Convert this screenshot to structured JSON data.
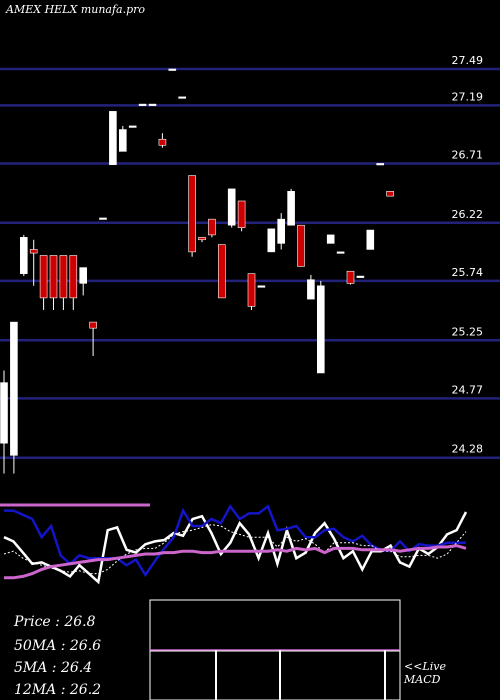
{
  "header": {
    "title": "AMEX  HELX  munafa.pro"
  },
  "stats": {
    "price": "Price   : 26.8",
    "ma50": "50MA : 26.6",
    "ma5": "5MA : 26.4",
    "ma12": "12MA : 26.2"
  },
  "labels": {
    "live": "<<Live",
    "macd": "MACD"
  },
  "colors": {
    "background": "#000000",
    "gridline": "#22227a",
    "up_candle": "#ffffff",
    "down_candle": "#cc0000",
    "fast_line": "#ffffff",
    "mid_line": "#1414c8",
    "slow_line": "#cc66cc",
    "macd_line": "#cc66cc"
  },
  "chart_data": {
    "type": "candlestick",
    "ylim": [
      24.15,
      27.7
    ],
    "y_ticks": [
      "27.49",
      "27.19",
      "26.71",
      "26.22",
      "25.74",
      "25.25",
      "24.77",
      "24.28"
    ],
    "candles": [
      {
        "o": 24.4,
        "h": 25.0,
        "l": 24.15,
        "c": 24.9
      },
      {
        "o": 24.3,
        "h": 25.4,
        "l": 24.15,
        "c": 25.4
      },
      {
        "o": 25.8,
        "h": 26.12,
        "l": 25.78,
        "c": 26.1
      },
      {
        "o": 26.0,
        "h": 26.08,
        "l": 25.7,
        "c": 25.97
      },
      {
        "o": 25.95,
        "h": 25.95,
        "l": 25.5,
        "c": 25.6
      },
      {
        "o": 25.95,
        "h": 25.95,
        "l": 25.5,
        "c": 25.6
      },
      {
        "o": 25.95,
        "h": 25.95,
        "l": 25.5,
        "c": 25.6
      },
      {
        "o": 25.95,
        "h": 25.95,
        "l": 25.5,
        "c": 25.6
      },
      {
        "o": 25.72,
        "h": 25.85,
        "l": 25.62,
        "c": 25.85
      },
      {
        "o": 25.4,
        "h": 25.4,
        "l": 25.12,
        "c": 25.35
      },
      {
        "o": 26.26,
        "h": 26.26,
        "l": 26.26,
        "c": 26.26
      },
      {
        "o": 26.7,
        "h": 27.14,
        "l": 26.7,
        "c": 27.14
      },
      {
        "o": 26.81,
        "h": 27.02,
        "l": 26.81,
        "c": 26.99
      },
      {
        "o": 27.02,
        "h": 27.02,
        "l": 27.02,
        "c": 27.02
      },
      {
        "o": 27.2,
        "h": 27.2,
        "l": 27.2,
        "c": 27.2
      },
      {
        "o": 27.2,
        "h": 27.2,
        "l": 27.2,
        "c": 27.2
      },
      {
        "o": 26.91,
        "h": 26.96,
        "l": 26.84,
        "c": 26.86
      },
      {
        "o": 27.49,
        "h": 27.49,
        "l": 27.49,
        "c": 27.49
      },
      {
        "o": 27.26,
        "h": 27.26,
        "l": 27.26,
        "c": 27.26
      },
      {
        "o": 26.61,
        "h": 26.61,
        "l": 25.94,
        "c": 25.98
      },
      {
        "o": 26.1,
        "h": 26.1,
        "l": 26.06,
        "c": 26.08
      },
      {
        "o": 26.25,
        "h": 26.25,
        "l": 26.1,
        "c": 26.12
      },
      {
        "o": 26.04,
        "h": 26.04,
        "l": 25.6,
        "c": 25.6
      },
      {
        "o": 26.2,
        "h": 26.5,
        "l": 26.18,
        "c": 26.5
      },
      {
        "o": 26.4,
        "h": 26.4,
        "l": 26.15,
        "c": 26.18
      },
      {
        "o": 25.8,
        "h": 25.8,
        "l": 25.5,
        "c": 25.53
      },
      {
        "o": 25.7,
        "h": 25.7,
        "l": 25.7,
        "c": 25.7
      },
      {
        "o": 25.98,
        "h": 26.17,
        "l": 25.98,
        "c": 26.17
      },
      {
        "o": 26.05,
        "h": 26.3,
        "l": 26.0,
        "c": 26.25
      },
      {
        "o": 26.2,
        "h": 26.5,
        "l": 26.2,
        "c": 26.48
      },
      {
        "o": 26.2,
        "h": 26.2,
        "l": 25.86,
        "c": 25.86
      },
      {
        "o": 25.59,
        "h": 25.79,
        "l": 25.59,
        "c": 25.75
      },
      {
        "o": 24.98,
        "h": 25.74,
        "l": 24.98,
        "c": 25.7
      },
      {
        "o": 26.05,
        "h": 26.12,
        "l": 26.05,
        "c": 26.12
      },
      {
        "o": 25.98,
        "h": 25.98,
        "l": 25.98,
        "c": 25.98
      },
      {
        "o": 25.82,
        "h": 25.82,
        "l": 25.71,
        "c": 25.72
      },
      {
        "o": 25.78,
        "h": 25.78,
        "l": 25.78,
        "c": 25.78
      },
      {
        "o": 26.0,
        "h": 26.16,
        "l": 26.0,
        "c": 26.16
      },
      {
        "o": 26.71,
        "h": 26.71,
        "l": 26.71,
        "c": 26.71
      },
      {
        "o": 26.48,
        "h": 26.48,
        "l": 26.44,
        "c": 26.44
      }
    ],
    "series": [
      {
        "values": [
          52,
          49,
          41,
          33,
          34,
          31,
          28,
          24,
          32,
          26,
          20,
          57,
          59,
          43,
          41,
          47,
          49,
          50,
          55,
          53,
          65,
          67,
          55,
          40,
          48,
          62,
          54,
          37,
          55,
          33,
          57,
          37,
          41,
          55,
          62,
          51,
          37,
          42,
          29,
          42,
          42,
          46,
          34,
          31,
          44,
          40,
          45,
          54,
          57,
          70
        ]
      },
      {
        "values": [
          71,
          71,
          68,
          65,
          52,
          60,
          39,
          33,
          39,
          37,
          37,
          37,
          37,
          32,
          36,
          25,
          35,
          44,
          52,
          71,
          60,
          60,
          65,
          62,
          74,
          65,
          69,
          69,
          74,
          57,
          58,
          60,
          52,
          52,
          57,
          58,
          52,
          49,
          53,
          46,
          43,
          42,
          49,
          42,
          47,
          46,
          46,
          48,
          48,
          48
        ]
      },
      {
        "values": [
          40,
          42,
          37,
          34,
          32,
          30,
          28,
          27,
          28,
          26,
          26,
          29,
          35,
          40,
          43,
          44,
          44,
          48,
          54,
          56,
          57,
          59,
          61,
          60,
          56,
          54,
          52,
          52,
          52,
          45,
          52,
          49,
          51,
          47,
          41,
          48,
          48,
          48,
          46,
          46,
          42,
          42,
          38,
          38,
          39,
          39,
          37,
          40,
          48,
          56
        ]
      },
      {
        "values": [
          23,
          23,
          24,
          26,
          29,
          31,
          32,
          33,
          34,
          35,
          36,
          36,
          37,
          38,
          39,
          40,
          40,
          41,
          41,
          42,
          42,
          41,
          41,
          42,
          42,
          42,
          42,
          42,
          42,
          43,
          42,
          44,
          43,
          44,
          41,
          44,
          44,
          44,
          43,
          43,
          43,
          43,
          42,
          43,
          44,
          44,
          45,
          45,
          46,
          44
        ]
      },
      {
        "values": [
          75,
          75,
          75,
          75,
          75,
          75,
          75
        ]
      }
    ]
  }
}
